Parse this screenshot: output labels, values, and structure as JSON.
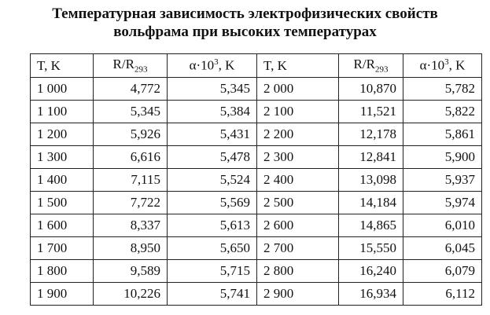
{
  "header": {
    "title": [
      "Температурная зависимость электрофизических свойств",
      "вольфрама при высоких температурах"
    ]
  },
  "table": {
    "columns": [
      {
        "text": "T, K"
      },
      {
        "text": "R/R",
        "sub": "293"
      },
      {
        "text": "α·10",
        "sup": "3",
        "after": ", K"
      },
      {
        "text": "T, K"
      },
      {
        "text": "R/R",
        "sub": "293"
      },
      {
        "text": "α·10",
        "sup": "3",
        "after": ", K"
      }
    ],
    "rows": [
      [
        "1 000",
        "4,772",
        "5,345",
        "2 000",
        "10,870",
        "5,782"
      ],
      [
        "1 100",
        "5,345",
        "5,384",
        "2 100",
        "11,521",
        "5,822"
      ],
      [
        "1 200",
        "5,926",
        "5,431",
        "2 200",
        "12,178",
        "5,861"
      ],
      [
        "1 300",
        "6,616",
        "5,478",
        "2 300",
        "12,841",
        "5,900"
      ],
      [
        "1 400",
        "7,115",
        "5,524",
        "2 400",
        "13,098",
        "5,937"
      ],
      [
        "1 500",
        "7,722",
        "5,569",
        "2 500",
        "14,184",
        "5,974"
      ],
      [
        "1 600",
        "8,337",
        "5,613",
        "2 600",
        "14,865",
        "6,010"
      ],
      [
        "1 700",
        "8,950",
        "5,650",
        "2 700",
        "15,550",
        "6,045"
      ],
      [
        "1 800",
        "9,589",
        "5,715",
        "2 800",
        "16,240",
        "6,079"
      ],
      [
        "1 900",
        "10,226",
        "5,741",
        "2 900",
        "16,934",
        "6,112"
      ]
    ]
  }
}
